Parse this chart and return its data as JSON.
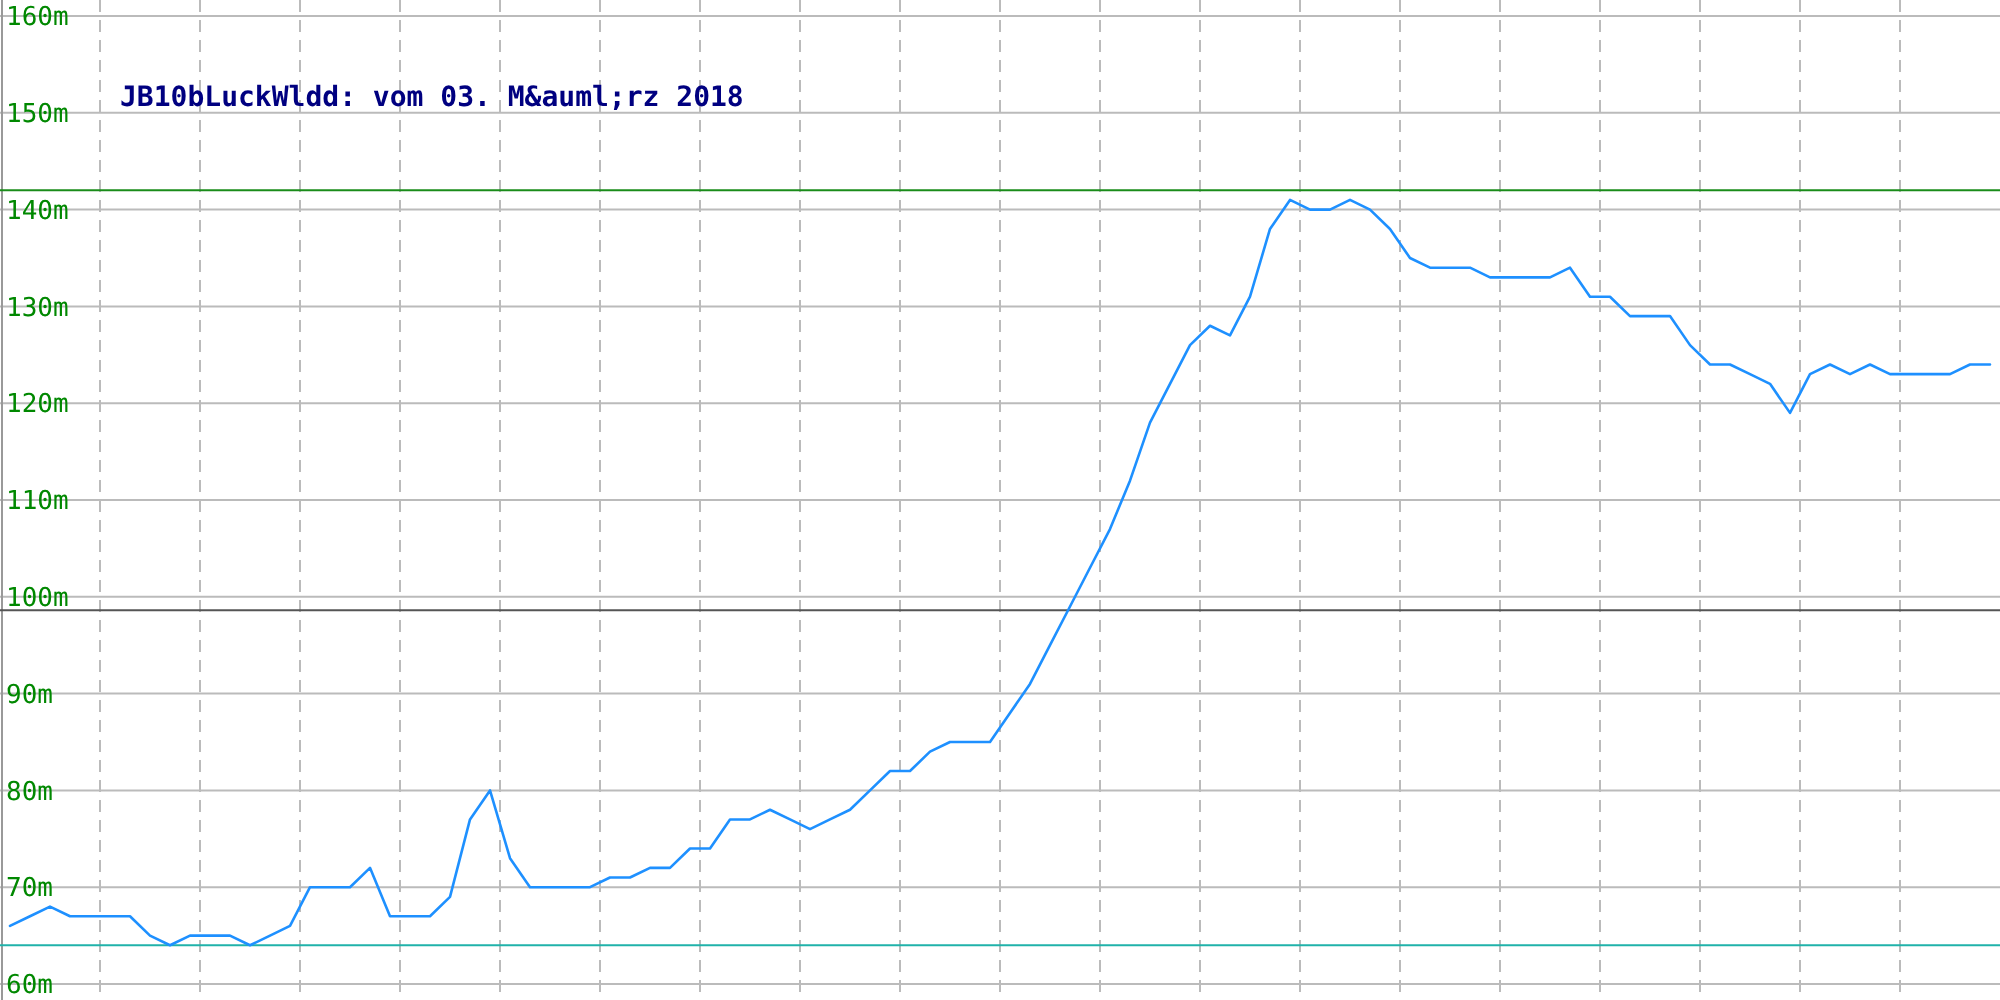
{
  "chart_data": {
    "type": "line",
    "title": "JB10bLuckWldd: vom 03. M&auml;rz 2018",
    "categories": [
      null,
      null,
      null,
      null,
      null,
      null,
      null,
      null,
      null,
      null,
      null,
      null,
      null,
      null,
      null,
      null,
      null,
      null,
      null,
      null,
      null,
      null,
      null,
      null,
      null,
      null,
      null,
      null,
      null,
      null,
      null,
      null,
      null,
      null,
      null,
      null,
      null,
      null,
      null,
      null,
      null,
      null,
      null,
      null,
      null,
      null,
      null,
      null,
      null,
      null,
      null,
      null,
      null,
      null,
      null,
      null,
      null,
      null,
      null,
      null,
      null,
      null,
      null,
      null,
      null,
      null,
      null,
      null,
      null,
      null,
      null,
      null,
      null,
      null,
      null,
      null,
      null,
      null,
      null,
      null,
      null,
      null,
      null,
      null,
      null,
      null,
      null,
      null,
      null,
      null,
      null,
      null,
      null,
      null,
      null,
      null,
      null,
      null,
      null,
      null
    ],
    "ylim": [
      60,
      160
    ],
    "yticks": [
      {
        "value": 60,
        "label": "60m"
      },
      {
        "value": 70,
        "label": "70m"
      },
      {
        "value": 80,
        "label": "80m"
      },
      {
        "value": 90,
        "label": "90m"
      },
      {
        "value": 100,
        "label": "100m"
      },
      {
        "value": 110,
        "label": "110m"
      },
      {
        "value": 120,
        "label": "120m"
      },
      {
        "value": 130,
        "label": "130m"
      },
      {
        "value": 140,
        "label": "140m"
      },
      {
        "value": 150,
        "label": "150m"
      },
      {
        "value": 160,
        "label": "160m"
      }
    ],
    "tick_labels": "y",
    "grid": true,
    "marker": "none",
    "line_style": "solid",
    "ref_lines": [
      {
        "axis": "y",
        "value": 142,
        "color": "#1a8c1a"
      },
      {
        "axis": "y",
        "value": 98.6,
        "color": "#555555"
      },
      {
        "axis": "y",
        "value": 64,
        "color": "#20b2aa"
      }
    ],
    "series": [
      {
        "color": "#1e90ff",
        "values": [
          66,
          67,
          68,
          67,
          67,
          67,
          67,
          65,
          64,
          65,
          65,
          65,
          64,
          65,
          66,
          70,
          70,
          70,
          72,
          67,
          67,
          67,
          69,
          77,
          80,
          73,
          70,
          70,
          70,
          70,
          71,
          71,
          72,
          72,
          74,
          74,
          77,
          77,
          78,
          77,
          76,
          77,
          78,
          80,
          82,
          82,
          84,
          85,
          85,
          85,
          88,
          91,
          95,
          99,
          103,
          107,
          112,
          118,
          122,
          126,
          128,
          127,
          131,
          138,
          141,
          140,
          140,
          141,
          140,
          138,
          135,
          134,
          134,
          134,
          133,
          133,
          133,
          133,
          134,
          131,
          131,
          129,
          129,
          129,
          126,
          124,
          124,
          123,
          122,
          119,
          123,
          124,
          123,
          124,
          123,
          123,
          123,
          123,
          124,
          124
        ]
      }
    ]
  }
}
